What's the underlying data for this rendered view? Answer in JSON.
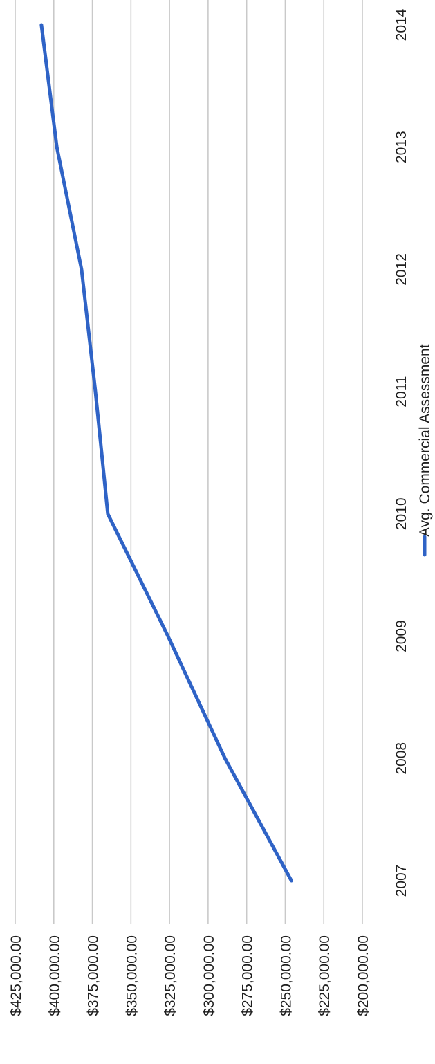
{
  "chart_data": {
    "type": "line",
    "orientation": "rotated-90-clockwise",
    "categories": [
      "2007",
      "2008",
      "2009",
      "2010",
      "2011",
      "2012",
      "2013",
      "2014"
    ],
    "series": [
      {
        "name": "Avg. Commercial Assessment",
        "color": "#2f63c6",
        "values": [
          246000,
          289000,
          326000,
          365000,
          373000,
          382000,
          398000,
          408000
        ]
      }
    ],
    "title": "",
    "xlabel": "",
    "ylabel": "",
    "ylim": [
      200000,
      425000
    ],
    "y_ticks": [
      "$425,000.00",
      "$400,000.00",
      "$375,000.00",
      "$350,000.00",
      "$325,000.00",
      "$300,000.00",
      "$275,000.00",
      "$250,000.00",
      "$225,000.00",
      "$200,000.00"
    ],
    "grid": true,
    "legend": "bottom"
  }
}
